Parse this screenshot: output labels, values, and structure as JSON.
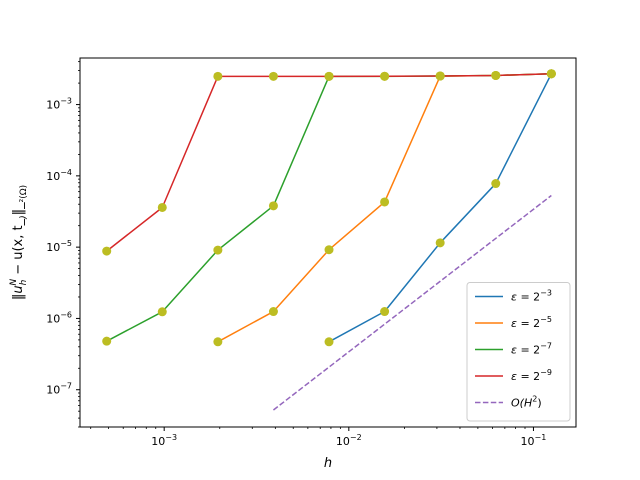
{
  "chart_data": {
    "type": "line",
    "title": "",
    "xlabel": "h",
    "ylabel": "‖u_h^N − u(x, t_N)‖_{L²(Ω)}",
    "xscale": "log",
    "yscale": "log",
    "xlim": [
      0.00035,
      0.17
    ],
    "ylim": [
      3e-08,
      0.0045
    ],
    "x_ticks": [
      {
        "value": 0.001,
        "mant": "10",
        "exp": "−3"
      },
      {
        "value": 0.01,
        "mant": "10",
        "exp": "−2"
      },
      {
        "value": 0.1,
        "mant": "10",
        "exp": "−1"
      }
    ],
    "y_ticks": [
      {
        "value": 1e-07,
        "mant": "10",
        "exp": "−7"
      },
      {
        "value": 1e-06,
        "mant": "10",
        "exp": "−6"
      },
      {
        "value": 1e-05,
        "mant": "10",
        "exp": "−5"
      },
      {
        "value": 0.0001,
        "mant": "10",
        "exp": "−4"
      },
      {
        "value": 0.001,
        "mant": "10",
        "exp": "−3"
      }
    ],
    "grid": false,
    "legend_position": "lower right",
    "marker_color": "#bcbd22",
    "series": [
      {
        "name": "ε = 2^−3",
        "label_base": "2",
        "label_exp": "−3",
        "color": "#1f77b4",
        "dashed": false,
        "markers": true,
        "x": [
          0.0078125,
          0.015625,
          0.03125,
          0.0625,
          0.125
        ],
        "y": [
          4.7e-07,
          1.25e-06,
          1.15e-05,
          7.8e-05,
          0.0027
        ]
      },
      {
        "name": "ε = 2^−5",
        "label_base": "2",
        "label_exp": "−5",
        "color": "#ff7f0e",
        "dashed": false,
        "markers": true,
        "x": [
          0.001953125,
          0.00390625,
          0.0078125,
          0.015625,
          0.03125,
          0.0625,
          0.125
        ],
        "y": [
          4.7e-07,
          1.25e-06,
          9.2e-06,
          4.3e-05,
          0.00251,
          0.00256,
          0.00271
        ]
      },
      {
        "name": "ε = 2^−7",
        "label_base": "2",
        "label_exp": "−7",
        "color": "#2ca02c",
        "dashed": false,
        "markers": true,
        "x": [
          0.00048828125,
          0.0009765625,
          0.001953125,
          0.00390625,
          0.0078125,
          0.015625,
          0.03125,
          0.0625,
          0.125
        ],
        "y": [
          4.8e-07,
          1.24e-06,
          9.1e-06,
          3.8e-05,
          0.00249,
          0.00249,
          0.00252,
          0.00256,
          0.00271
        ]
      },
      {
        "name": "ε = 2^−9",
        "label_base": "2",
        "label_exp": "−9",
        "color": "#d62728",
        "dashed": false,
        "markers": true,
        "x": [
          0.00048828125,
          0.0009765625,
          0.001953125,
          0.00390625,
          0.0078125,
          0.015625,
          0.03125,
          0.0625,
          0.125
        ],
        "y": [
          8.8e-06,
          3.6e-05,
          0.00249,
          0.00249,
          0.00249,
          0.0025,
          0.00252,
          0.00256,
          0.00271
        ]
      },
      {
        "name": "O(H^2)",
        "label_base": "O(H",
        "label_exp": "2",
        "label_tail": ")",
        "color": "#9467bd",
        "dashed": true,
        "markers": false,
        "x": [
          0.00390625,
          0.125
        ],
        "y": [
          5.2e-08,
          5.3e-05
        ]
      }
    ]
  }
}
